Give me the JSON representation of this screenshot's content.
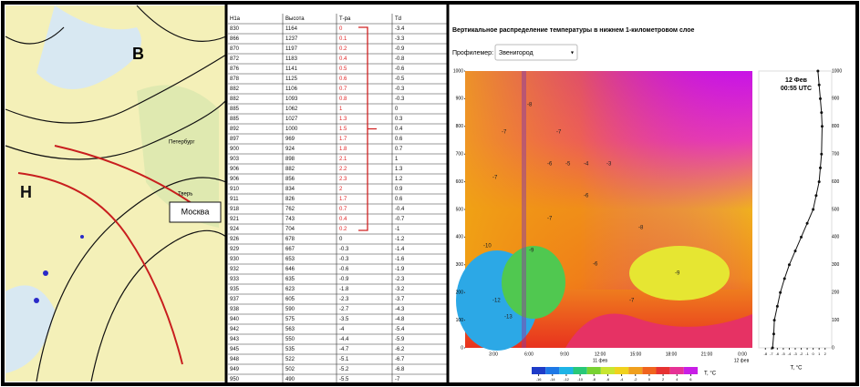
{
  "map": {
    "labels": [
      "В",
      "Н",
      "Москва",
      "Тверь",
      "Петербург"
    ]
  },
  "table": {
    "header": [
      "Н1а",
      "Высота",
      "Т-ра",
      "Td"
    ],
    "highlighted_range": [
      0,
      20
    ],
    "rows": [
      [
        "830",
        "1164",
        "0",
        "-3.4"
      ],
      [
        "866",
        "1237",
        "0.1",
        "-3.3"
      ],
      [
        "870",
        "1197",
        "0.2",
        "-0.9"
      ],
      [
        "872",
        "1183",
        "0.4",
        "-0.8"
      ],
      [
        "876",
        "1141",
        "0.5",
        "-0.6"
      ],
      [
        "878",
        "1125",
        "0.6",
        "-0.5"
      ],
      [
        "882",
        "1106",
        "0.7",
        "-0.3"
      ],
      [
        "882",
        "1093",
        "0.8",
        "-0.3"
      ],
      [
        "885",
        "1062",
        "1",
        "0"
      ],
      [
        "885",
        "1027",
        "1.3",
        "0.3"
      ],
      [
        "892",
        "1000",
        "1.5",
        "0.4"
      ],
      [
        "897",
        "969",
        "1.7",
        "0.6"
      ],
      [
        "900",
        "924",
        "1.8",
        "0.7"
      ],
      [
        "903",
        "898",
        "2.1",
        "1"
      ],
      [
        "906",
        "882",
        "2.2",
        "1.3"
      ],
      [
        "906",
        "856",
        "2.3",
        "1.2"
      ],
      [
        "910",
        "834",
        "2",
        "0.9"
      ],
      [
        "911",
        "826",
        "1.7",
        "0.6"
      ],
      [
        "918",
        "762",
        "0.7",
        "-0.4"
      ],
      [
        "921",
        "743",
        "0.4",
        "-0.7"
      ],
      [
        "924",
        "704",
        "0.2",
        "-1"
      ],
      [
        "926",
        "678",
        "0",
        "-1.2"
      ],
      [
        "929",
        "667",
        "-0.3",
        "-1.4"
      ],
      [
        "930",
        "653",
        "-0.3",
        "-1.6"
      ],
      [
        "932",
        "646",
        "-0.6",
        "-1.9"
      ],
      [
        "933",
        "635",
        "-0.9",
        "-2.3"
      ],
      [
        "935",
        "623",
        "-1.8",
        "-3.2"
      ],
      [
        "937",
        "605",
        "-2.3",
        "-3.7"
      ],
      [
        "938",
        "590",
        "-2.7",
        "-4.3"
      ],
      [
        "940",
        "575",
        "-3.5",
        "-4.8"
      ],
      [
        "942",
        "563",
        "-4",
        "-5.4"
      ],
      [
        "943",
        "550",
        "-4.4",
        "-5.9"
      ],
      [
        "945",
        "535",
        "-4.7",
        "-6.2"
      ],
      [
        "948",
        "522",
        "-5.1",
        "-6.7"
      ],
      [
        "949",
        "502",
        "-5.2",
        "-6.8"
      ],
      [
        "950",
        "490",
        "-5.5",
        "-7"
      ]
    ]
  },
  "chart": {
    "title": "Вертикальное распределение температуры в нижнем 1-километровом слое",
    "profiler_label": "Профилемер:",
    "profiler_value": "Звенигород",
    "ylim": [
      0,
      1000
    ],
    "yticks": [
      0,
      100,
      200,
      300,
      400,
      500,
      600,
      700,
      800,
      900,
      1000
    ],
    "xticks": [
      "3:00",
      "6:00",
      "9:00",
      "12:00",
      "15:00",
      "18:00",
      "21:00",
      "0:00"
    ],
    "dates": [
      "11 фев",
      "12 фев"
    ],
    "colorbar_lim": [
      -17,
      7
    ],
    "colorbar_ticks": [
      -16,
      -14,
      -12,
      -10,
      -8,
      -6,
      -4,
      -2,
      0,
      2,
      4,
      6
    ],
    "colorbar_label": "Т, °С",
    "contour_labels": [
      -8,
      -7,
      -7,
      -6,
      -5,
      -4,
      -3,
      -7,
      -6,
      -10,
      -12,
      -13,
      -9,
      -7,
      -8,
      -7,
      -6,
      -9
    ],
    "profile": {
      "title": "12 Фев",
      "subtitle": "00:55 UTC",
      "xlabel": "Т, °С",
      "xlim": [
        -8.5,
        2.5
      ],
      "xticks": [
        -8,
        -7,
        -6,
        -5,
        -4,
        -3,
        -2,
        -1,
        0,
        1,
        2
      ],
      "x": [
        -6.8,
        -6.6,
        -6.5,
        -6,
        -5.5,
        -4.8,
        -4,
        -3,
        -2,
        -1,
        0,
        0.5,
        1,
        1.2,
        1.4,
        1.5,
        1.4,
        1.2,
        1,
        0.8
      ],
      "y": [
        0,
        50,
        100,
        150,
        200,
        250,
        300,
        350,
        400,
        450,
        500,
        550,
        600,
        650,
        700,
        800,
        850,
        900,
        950,
        1000
      ]
    }
  }
}
